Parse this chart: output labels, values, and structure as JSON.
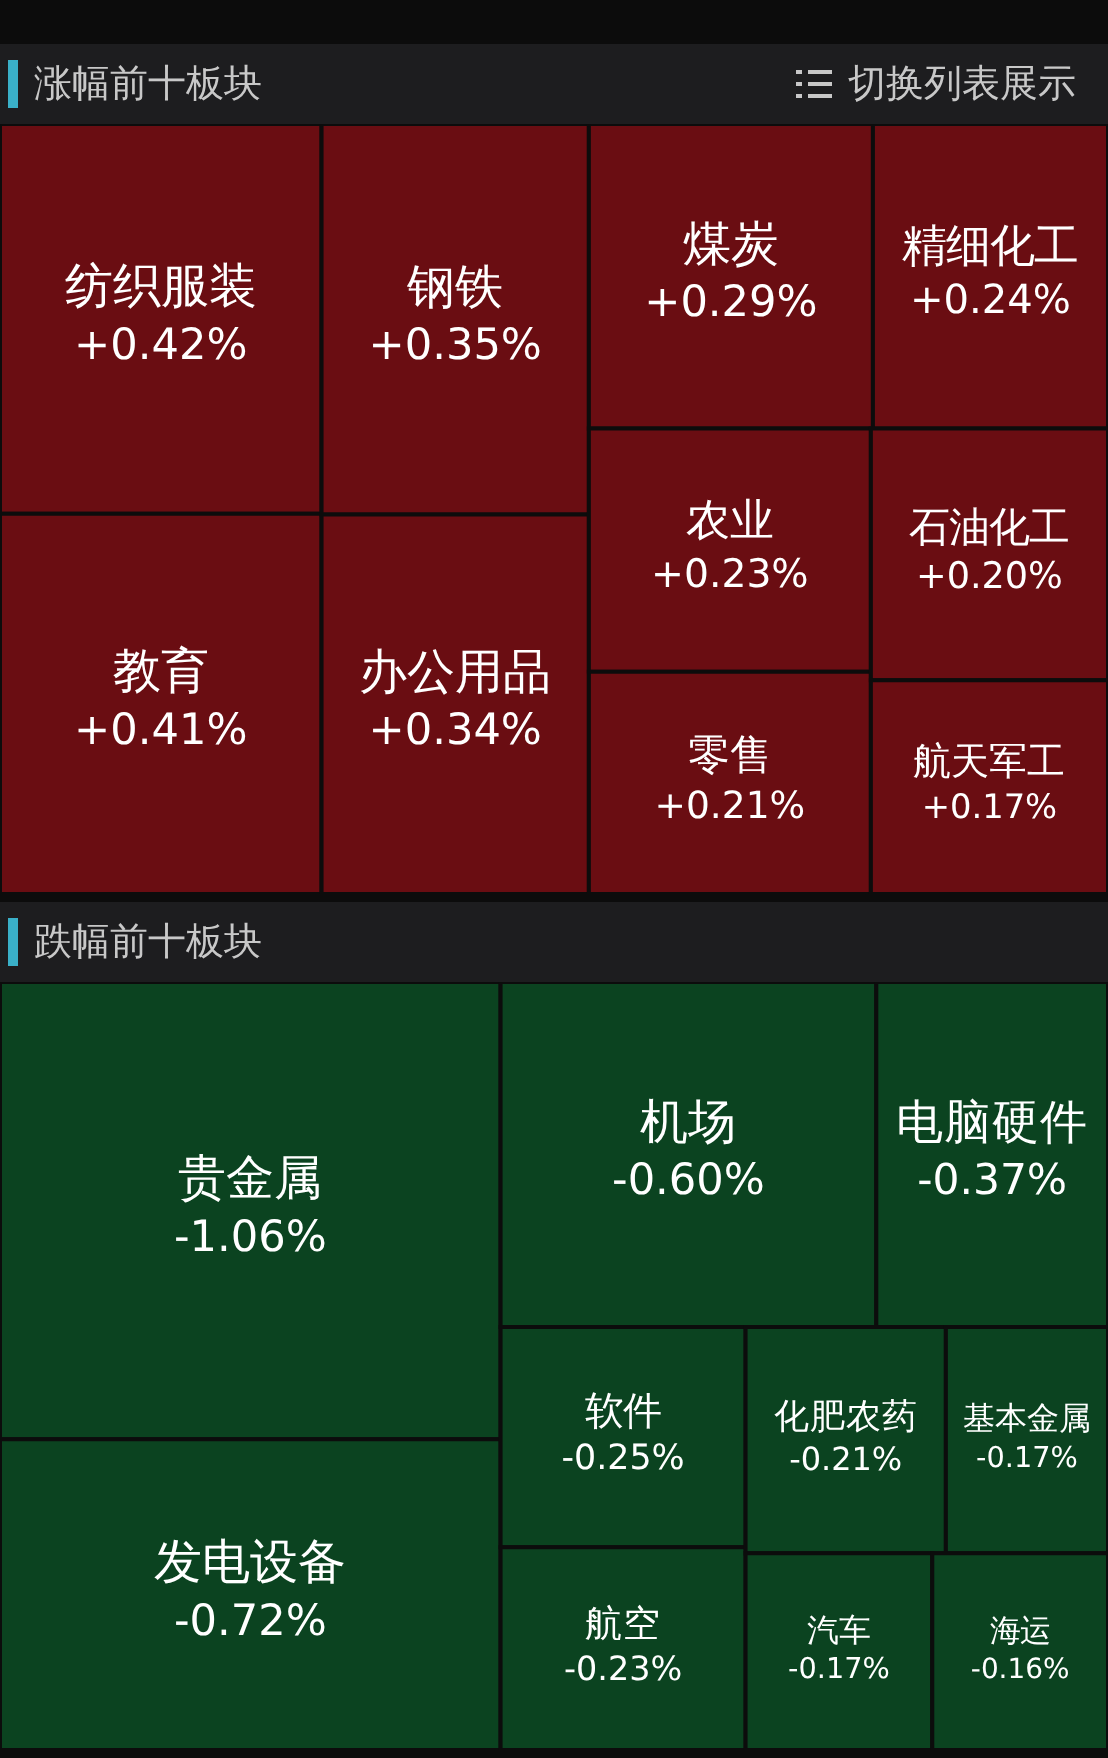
{
  "chart_data": [
    {
      "type": "other",
      "title": "涨幅前十板块",
      "color": "#6a0d12",
      "annotations": [
        "切换列表展示"
      ],
      "categories": [
        "纺织服装",
        "教育",
        "钢铁",
        "办公用品",
        "煤炭",
        "精细化工",
        "农业",
        "零售",
        "石油化工",
        "航天军工"
      ],
      "values": [
        0.42,
        0.41,
        0.35,
        0.34,
        0.29,
        0.24,
        0.23,
        0.21,
        0.2,
        0.17
      ],
      "value_labels": [
        "+0.42%",
        "+0.41%",
        "+0.35%",
        "+0.34%",
        "+0.29%",
        "+0.24%",
        "+0.23%",
        "+0.21%",
        "+0.20%",
        "+0.17%"
      ]
    },
    {
      "type": "other",
      "title": "跌幅前十板块",
      "color": "#0b4320",
      "categories": [
        "贵金属",
        "发电设备",
        "机场",
        "电脑硬件",
        "软件",
        "航空",
        "化肥农药",
        "基本金属",
        "汽车",
        "海运"
      ],
      "values": [
        -1.06,
        -0.72,
        -0.6,
        -0.37,
        -0.25,
        -0.23,
        -0.21,
        -0.17,
        -0.17,
        -0.16
      ],
      "value_labels": [
        "-1.06%",
        "-0.72%",
        "-0.60%",
        "-0.37%",
        "-0.25%",
        "-0.23%",
        "-0.21%",
        "-0.17%",
        "-0.17%",
        "-0.16%"
      ]
    }
  ]
}
